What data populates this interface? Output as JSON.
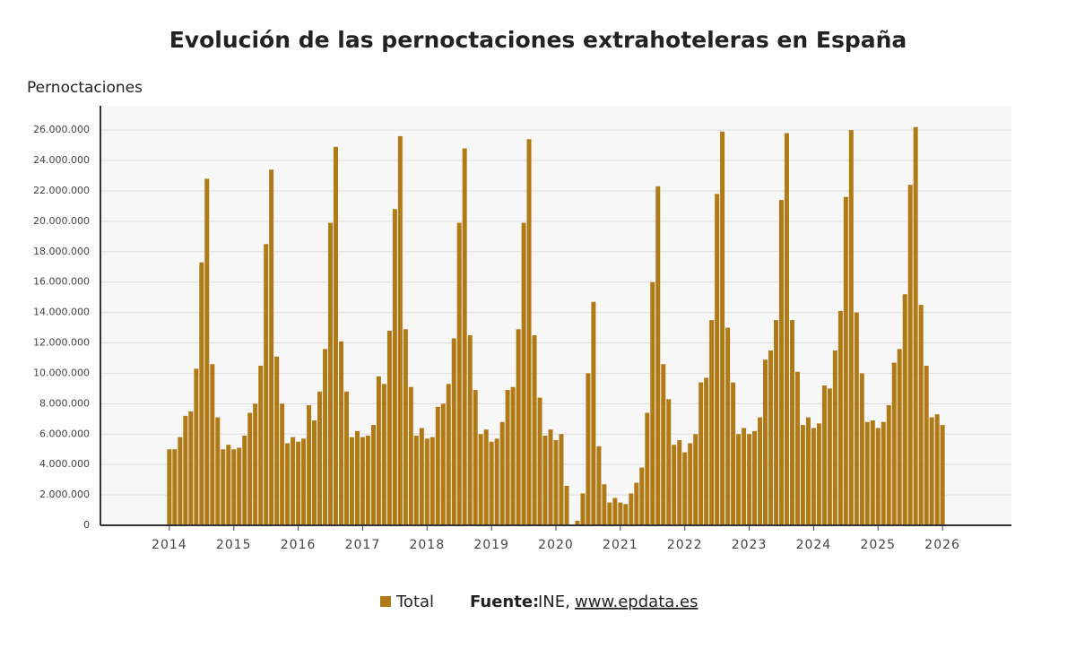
{
  "chart_data": {
    "type": "bar",
    "title": "Evolución de las pernoctaciones extrahoteleras en España",
    "y_label": "Pernoctaciones",
    "series": [
      {
        "name": "Total",
        "color": "#b07a17",
        "x": [
          2014,
          2014.083,
          2014.167,
          2014.25,
          2014.333,
          2014.417,
          2014.5,
          2014.583,
          2014.667,
          2014.75,
          2014.833,
          2014.917,
          2015,
          2015.083,
          2015.167,
          2015.25,
          2015.333,
          2015.417,
          2015.5,
          2015.583,
          2015.667,
          2015.75,
          2015.833,
          2015.917,
          2016,
          2016.083,
          2016.167,
          2016.25,
          2016.333,
          2016.417,
          2016.5,
          2016.583,
          2016.667,
          2016.75,
          2016.833,
          2016.917,
          2017,
          2017.083,
          2017.167,
          2017.25,
          2017.333,
          2017.417,
          2017.5,
          2017.583,
          2017.667,
          2017.75,
          2017.833,
          2017.917,
          2018,
          2018.083,
          2018.167,
          2018.25,
          2018.333,
          2018.417,
          2018.5,
          2018.583,
          2018.667,
          2018.75,
          2018.833,
          2018.917,
          2019,
          2019.083,
          2019.167,
          2019.25,
          2019.333,
          2019.417,
          2019.5,
          2019.583,
          2019.667,
          2019.75,
          2019.833,
          2019.917,
          2020,
          2020.083,
          2020.167,
          2020.25,
          2020.333,
          2020.417,
          2020.5,
          2020.583,
          2020.667,
          2020.75,
          2020.833,
          2020.917,
          2021,
          2021.083,
          2021.167,
          2021.25,
          2021.333,
          2021.417,
          2021.5,
          2021.583,
          2021.667,
          2021.75,
          2021.833,
          2021.917,
          2022,
          2022.083,
          2022.167,
          2022.25,
          2022.333,
          2022.417,
          2022.5,
          2022.583,
          2022.667,
          2022.75,
          2022.833,
          2022.917,
          2023,
          2023.083,
          2023.167,
          2023.25,
          2023.333,
          2023.417,
          2023.5,
          2023.583,
          2023.667,
          2023.75,
          2023.833,
          2023.917,
          2024,
          2024.083,
          2024.167,
          2024.25,
          2024.333,
          2024.417,
          2024.5,
          2024.583,
          2024.667,
          2024.75,
          2024.833,
          2024.917,
          2025,
          2025.083,
          2025.167,
          2025.25,
          2025.333,
          2025.417,
          2025.5,
          2025.583,
          2025.667,
          2025.75,
          2025.833,
          2025.917,
          2026
        ],
        "values": [
          5000000,
          5000000,
          5800000,
          7200000,
          7500000,
          10300000,
          17300000,
          22800000,
          10600000,
          7100000,
          5000000,
          5300000,
          5000000,
          5100000,
          5900000,
          7400000,
          8000000,
          10500000,
          18500000,
          23400000,
          11100000,
          8000000,
          5400000,
          5800000,
          5500000,
          5700000,
          7900000,
          6900000,
          8800000,
          11600000,
          19900000,
          24900000,
          12100000,
          8800000,
          5800000,
          6200000,
          5800000,
          5900000,
          6600000,
          9800000,
          9300000,
          12800000,
          20800000,
          25600000,
          12900000,
          9100000,
          5900000,
          6400000,
          5700000,
          5800000,
          7800000,
          8000000,
          9300000,
          12300000,
          19900000,
          24800000,
          12500000,
          8900000,
          6000000,
          6300000,
          5500000,
          5700000,
          6800000,
          8900000,
          9100000,
          12900000,
          19900000,
          25400000,
          12500000,
          8400000,
          5900000,
          6300000,
          5600000,
          6000000,
          2600000,
          0,
          300000,
          2100000,
          10000000,
          14700000,
          5200000,
          2700000,
          1500000,
          1800000,
          1500000,
          1400000,
          2100000,
          2800000,
          3800000,
          7400000,
          16000000,
          22300000,
          10600000,
          8300000,
          5300000,
          5600000,
          4800000,
          5400000,
          6000000,
          9400000,
          9700000,
          13500000,
          21800000,
          25900000,
          13000000,
          9400000,
          6000000,
          6400000,
          6000000,
          6200000,
          7100000,
          10900000,
          11500000,
          13500000,
          21400000,
          25800000,
          13500000,
          10100000,
          6600000,
          7100000,
          6400000,
          6700000,
          9200000,
          9000000,
          11500000,
          14100000,
          21600000,
          26000000,
          14000000,
          10000000,
          6800000,
          6900000,
          6400000,
          6800000,
          7900000,
          10700000,
          11600000,
          15200000,
          22400000,
          26200000,
          14500000,
          10500000,
          7100000,
          7300000,
          6600000
        ]
      }
    ],
    "xlim": [
      2012.93,
      2027.07
    ],
    "xticks": [
      2014,
      2015,
      2016,
      2017,
      2018,
      2019,
      2020,
      2021,
      2022,
      2023,
      2024,
      2025,
      2026
    ],
    "ylim": [
      0,
      27600000
    ],
    "yticks": [
      0,
      {
        "value": 2000000,
        "label": "2.000.000"
      },
      {
        "value": 4000000,
        "label": "4.000.000"
      },
      {
        "value": 6000000,
        "label": "6.000.000"
      },
      {
        "value": 8000000,
        "label": "8.000.000"
      },
      {
        "value": 10000000,
        "label": "10.000.000"
      },
      {
        "value": 12000000,
        "label": "12.000.000"
      },
      {
        "value": 14000000,
        "label": "14.000.000"
      },
      {
        "value": 16000000,
        "label": "16.000.000"
      },
      {
        "value": 18000000,
        "label": "18.000.000"
      },
      {
        "value": 20000000,
        "label": "20.000.000"
      },
      {
        "value": 22000000,
        "label": "22.000.000"
      },
      {
        "value": 24000000,
        "label": "24.000.000"
      },
      {
        "value": 26000000,
        "label": "26.000.000"
      }
    ],
    "grid": true,
    "source": {
      "label": "Fuente:",
      "text": "INE,",
      "link": "www.epdata.es"
    }
  }
}
